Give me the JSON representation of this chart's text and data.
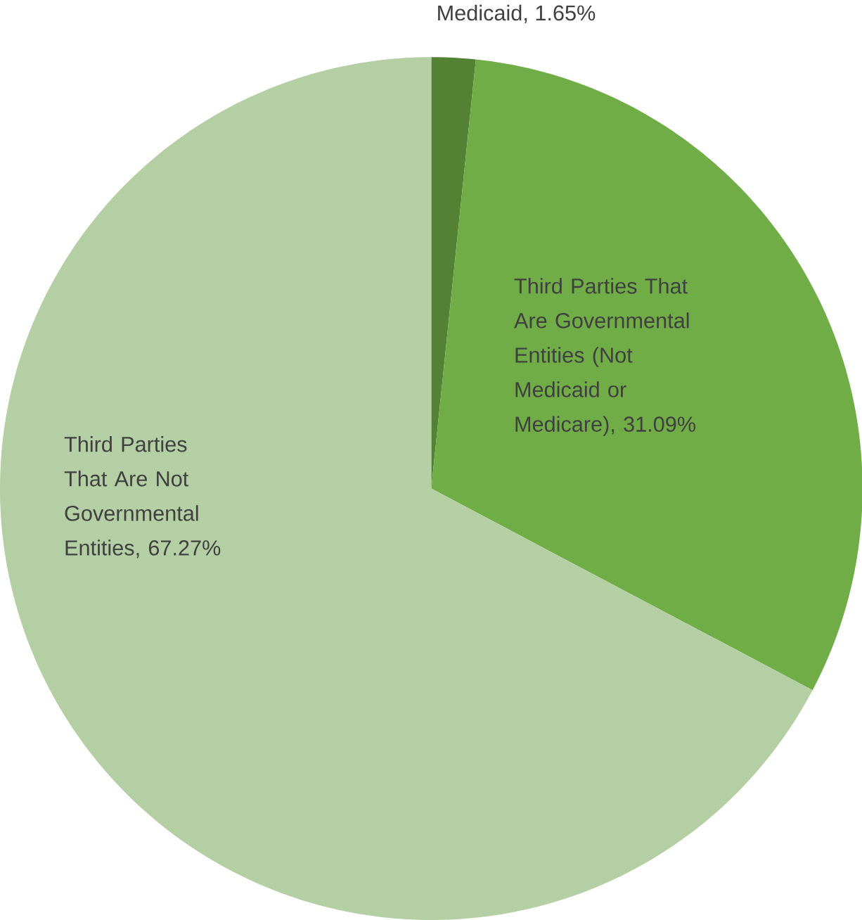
{
  "chart_data": {
    "type": "pie",
    "categories": [
      "Medicaid",
      "Third Parties That Are Governmental Entities (Not Medicaid or Medicare)",
      "Third Parties That Are Not Governmental Entities"
    ],
    "values": [
      1.65,
      31.09,
      67.27
    ],
    "value_labels": [
      ", 1.65%",
      ", 31.09%",
      ", 67.27%"
    ],
    "colors": [
      "#548235",
      "#70ad47",
      "#b4cfa4"
    ]
  }
}
